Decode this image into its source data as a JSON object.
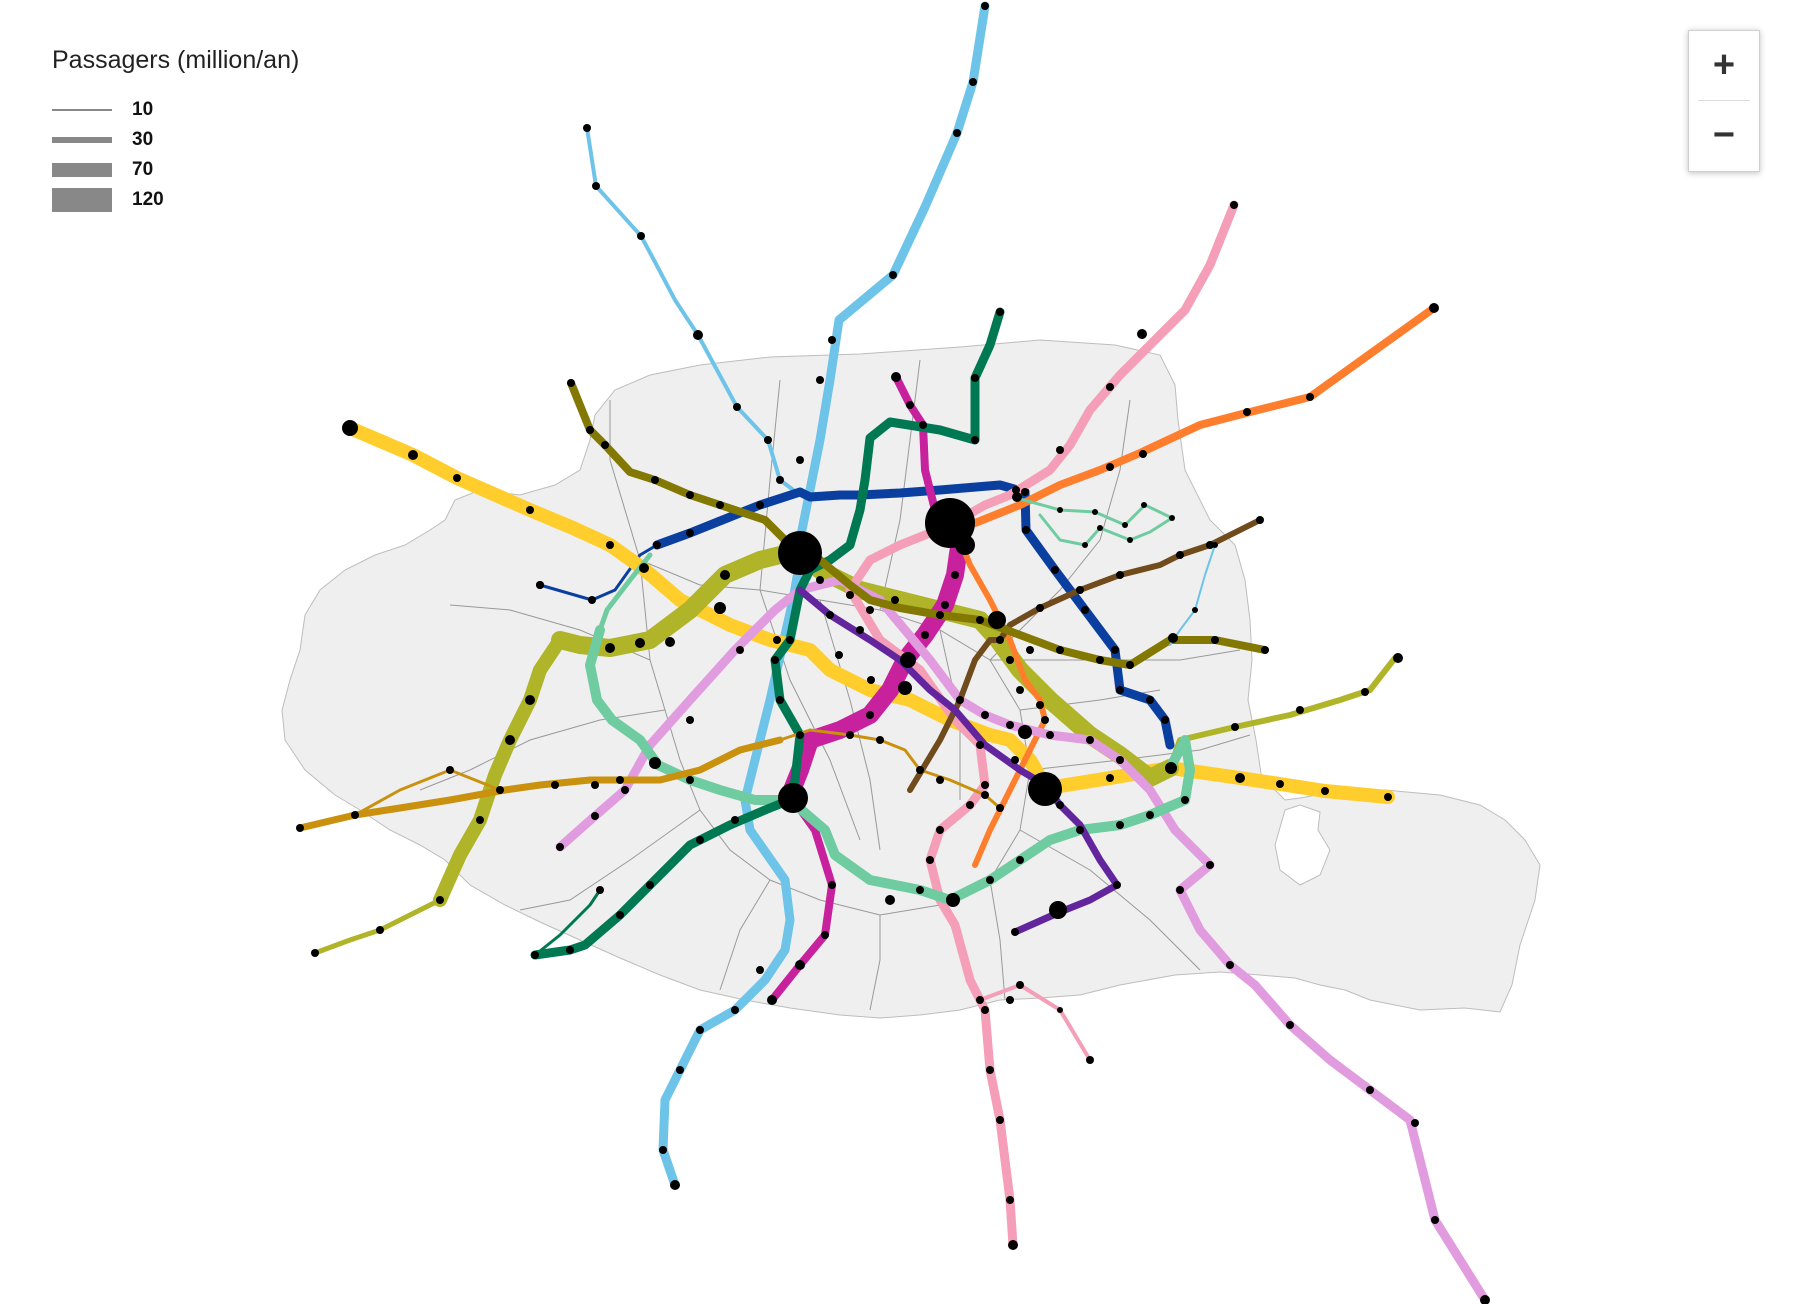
{
  "legend": {
    "title": "Passagers (million/an)",
    "entries": [
      {
        "label": "10",
        "value": 10
      },
      {
        "label": "30",
        "value": 30
      },
      {
        "label": "70",
        "value": 70
      },
      {
        "label": "120",
        "value": 120
      }
    ],
    "swatch_color": "#888888"
  },
  "zoom": {
    "zoom_in_label": "+",
    "zoom_out_label": "−"
  },
  "map": {
    "background": "#ffffff",
    "city_fill": "#efefef",
    "city_stroke": "#bbbbbb",
    "station_color": "#000000",
    "lines": [
      {
        "id": "line-1",
        "color": "#ffcd2c"
      },
      {
        "id": "line-2",
        "color": "#0a3fa0"
      },
      {
        "id": "line-3",
        "color": "#afb428"
      },
      {
        "id": "line-3bis",
        "color": "#6ec4e8"
      },
      {
        "id": "line-4",
        "color": "#c7219e"
      },
      {
        "id": "line-5",
        "color": "#ff7e2e"
      },
      {
        "id": "line-6",
        "color": "#6ecca0"
      },
      {
        "id": "line-7",
        "color": "#f59eb8"
      },
      {
        "id": "line-7bis",
        "color": "#6ecca0"
      },
      {
        "id": "line-8",
        "color": "#e19bdf"
      },
      {
        "id": "line-9",
        "color": "#b6bd00"
      },
      {
        "id": "line-10",
        "color": "#c9910d"
      },
      {
        "id": "line-11",
        "color": "#704b1c"
      },
      {
        "id": "line-12",
        "color": "#007852"
      },
      {
        "id": "line-13",
        "color": "#6ec4e8"
      },
      {
        "id": "line-14",
        "color": "#62259d"
      },
      {
        "id": "line-olive",
        "color": "#837902"
      }
    ]
  }
}
